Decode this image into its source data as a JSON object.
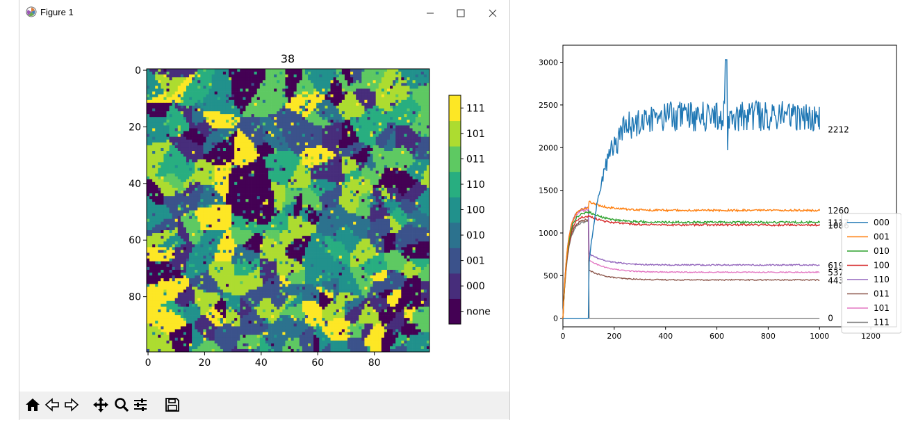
{
  "window": {
    "title": "Figure 1",
    "icons": {
      "app": "matplotlib-icon",
      "minimize": "minimize-icon",
      "maximize": "maximize-icon",
      "close": "close-icon"
    }
  },
  "heatmap": {
    "title": "38",
    "x_ticks": [
      "0",
      "20",
      "40",
      "60",
      "80"
    ],
    "y_ticks": [
      "0",
      "20",
      "40",
      "60",
      "80"
    ],
    "grid_size": 100,
    "colorbar_labels": [
      "none",
      "000",
      "001",
      "010",
      "100",
      "110",
      "011",
      "101",
      "111"
    ],
    "colormap": [
      "#440154",
      "#472d7b",
      "#3b528b",
      "#2c728e",
      "#21918c",
      "#28ae80",
      "#5ec962",
      "#addc30",
      "#fde725"
    ]
  },
  "toolbar": {
    "buttons": [
      "home-icon",
      "back-icon",
      "forward-icon",
      "pan-icon",
      "zoom-icon",
      "configure-subplots-icon",
      "save-icon"
    ]
  },
  "chart_data": {
    "type": "line",
    "x_range": [
      0,
      1000
    ],
    "xlim": [
      0,
      1300
    ],
    "ylim": [
      -100,
      3200
    ],
    "x_ticks": [
      "0",
      "200",
      "400",
      "600",
      "800",
      "1000",
      "1200"
    ],
    "y_ticks": [
      "0",
      "500",
      "1000",
      "1500",
      "2000",
      "2500",
      "3000"
    ],
    "legend_position": "lower-right",
    "series": [
      {
        "name": "000",
        "color": "#1f77b4",
        "final": 2212,
        "final_label": "2212",
        "plateau": 2370,
        "noise": 180
      },
      {
        "name": "001",
        "color": "#ff7f0e",
        "final": 1260,
        "final_label": "1260",
        "plateau": 1265,
        "noise": 12
      },
      {
        "name": "010",
        "color": "#2ca02c",
        "final": 1117,
        "final_label": "1117",
        "plateau": 1125,
        "noise": 12
      },
      {
        "name": "100",
        "color": "#d62728",
        "final": 1086,
        "final_label": "1086",
        "plateau": 1095,
        "noise": 12
      },
      {
        "name": "110",
        "color": "#9467bd",
        "final": 619,
        "final_label": "619",
        "plateau": 625,
        "noise": 8
      },
      {
        "name": "011",
        "color": "#8c564b",
        "final": 443,
        "final_label": "443",
        "plateau": 450,
        "noise": 6
      },
      {
        "name": "101",
        "color": "#e377c2",
        "final": 537,
        "final_label": "537",
        "plateau": 540,
        "noise": 6
      },
      {
        "name": "111",
        "color": "#7f7f7f",
        "final": 0,
        "final_label": "0",
        "plateau": 0,
        "noise": 0
      }
    ]
  }
}
